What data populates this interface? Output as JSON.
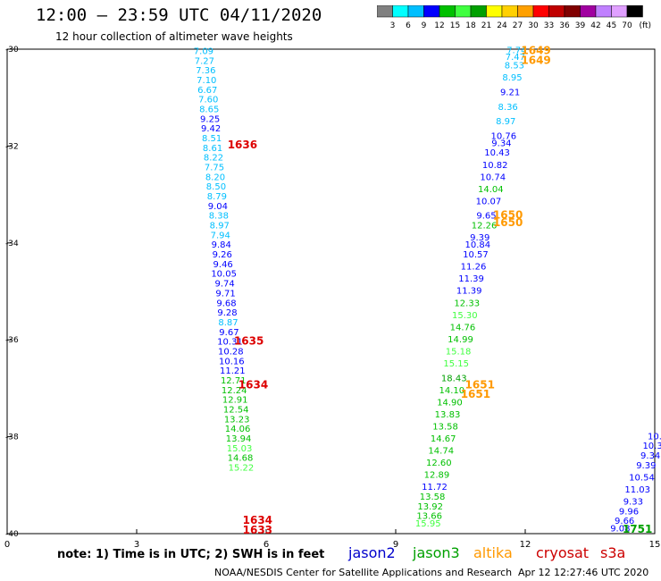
{
  "header": {
    "title": "12:00 – 23:59 UTC 04/11/2020",
    "subtitle": "12 hour collection of altimeter wave heights"
  },
  "legend": {
    "unit": "(ft)",
    "ticks": [
      "3",
      "6",
      "9",
      "12",
      "15",
      "18",
      "21",
      "24",
      "27",
      "30",
      "33",
      "36",
      "39",
      "42",
      "45",
      "70"
    ],
    "colors": [
      "#808080",
      "#00ffff",
      "#00bfff",
      "#0000ff",
      "#00c000",
      "#40ff40",
      "#00a000",
      "#ffff00",
      "#ffd000",
      "#ffa000",
      "#ff0000",
      "#c00000",
      "#800000",
      "#a000a0",
      "#c080ff",
      "#e0a0ff",
      "#000000"
    ]
  },
  "note": "note: 1) Time is in UTC; 2) SWH is in feet",
  "satellites": [
    {
      "name": "jason2",
      "color": "#0000cc"
    },
    {
      "name": "jason3",
      "color": "#00a000"
    },
    {
      "name": "altika",
      "color": "#ff9900"
    },
    {
      "name": "cryosat",
      "color": "#cc0000"
    },
    {
      "name": "s3a",
      "color": "#cc0000"
    }
  ],
  "footer": {
    "credit": "NOAA/NESDIS Center for Satellite Applications and Research",
    "timestamp": "Apr 12 12:27:46 UTC 2020"
  },
  "chart_data": {
    "type": "scatter",
    "xlim": [
      0,
      15
    ],
    "ylim": [
      -40,
      -30
    ],
    "xticks": [
      "0",
      "3",
      "6",
      "9",
      "12",
      "15"
    ],
    "yticks": [
      "-30",
      "-32",
      "-34",
      "-36",
      "-38",
      "-40"
    ],
    "grid": false,
    "legend_position": "top-right",
    "series": [
      {
        "name": "jason2",
        "color_scale": true,
        "points": [
          {
            "x": 4.55,
            "y": -30.1,
            "v": "7.09"
          },
          {
            "x": 4.57,
            "y": -30.3,
            "v": "7.27"
          },
          {
            "x": 4.6,
            "y": -30.5,
            "v": "7.36"
          },
          {
            "x": 4.62,
            "y": -30.7,
            "v": "7.10"
          },
          {
            "x": 4.64,
            "y": -30.9,
            "v": "6.67"
          },
          {
            "x": 4.66,
            "y": -31.1,
            "v": "7.60"
          },
          {
            "x": 4.68,
            "y": -31.3,
            "v": "8.65"
          },
          {
            "x": 4.7,
            "y": -31.5,
            "v": "9.25"
          },
          {
            "x": 4.72,
            "y": -31.7,
            "v": "9.42"
          },
          {
            "x": 4.74,
            "y": -31.9,
            "v": "8.51"
          },
          {
            "x": 4.76,
            "y": -32.1,
            "v": "8.61"
          },
          {
            "x": 4.78,
            "y": -32.3,
            "v": "8.22"
          },
          {
            "x": 4.8,
            "y": -32.5,
            "v": "7.75"
          },
          {
            "x": 4.82,
            "y": -32.7,
            "v": "8.20"
          },
          {
            "x": 4.84,
            "y": -32.9,
            "v": "8.50"
          },
          {
            "x": 4.86,
            "y": -33.1,
            "v": "8.79"
          },
          {
            "x": 4.88,
            "y": -33.3,
            "v": "9.04"
          },
          {
            "x": 4.9,
            "y": -33.5,
            "v": "8.38"
          },
          {
            "x": 4.92,
            "y": -33.7,
            "v": "8.97"
          },
          {
            "x": 4.94,
            "y": -33.9,
            "v": "7.94"
          },
          {
            "x": 4.96,
            "y": -34.1,
            "v": "9.84"
          },
          {
            "x": 4.98,
            "y": -34.3,
            "v": "9.26"
          },
          {
            "x": 5.0,
            "y": -34.5,
            "v": "9.46"
          },
          {
            "x": 5.02,
            "y": -34.7,
            "v": "10.05"
          },
          {
            "x": 5.04,
            "y": -34.9,
            "v": "9.74"
          },
          {
            "x": 5.06,
            "y": -35.1,
            "v": "9.71"
          },
          {
            "x": 5.08,
            "y": -35.3,
            "v": "9.68"
          },
          {
            "x": 5.1,
            "y": -35.5,
            "v": "9.28"
          },
          {
            "x": 5.12,
            "y": -35.7,
            "v": "8.87"
          },
          {
            "x": 5.14,
            "y": -35.9,
            "v": "9.67"
          },
          {
            "x": 5.16,
            "y": -36.1,
            "v": "10.31"
          },
          {
            "x": 5.18,
            "y": -36.3,
            "v": "10.28"
          },
          {
            "x": 5.2,
            "y": -36.5,
            "v": "10.16"
          },
          {
            "x": 5.22,
            "y": -36.7,
            "v": "11.21"
          },
          {
            "x": 5.24,
            "y": -36.9,
            "v": "12.71"
          },
          {
            "x": 5.26,
            "y": -37.1,
            "v": "12.24"
          },
          {
            "x": 5.28,
            "y": -37.3,
            "v": "12.91"
          },
          {
            "x": 5.3,
            "y": -37.5,
            "v": "12.54"
          },
          {
            "x": 5.32,
            "y": -37.7,
            "v": "13.23"
          },
          {
            "x": 5.34,
            "y": -37.9,
            "v": "14.06"
          },
          {
            "x": 5.36,
            "y": -38.1,
            "v": "13.94"
          },
          {
            "x": 5.38,
            "y": -38.3,
            "v": "15.03"
          },
          {
            "x": 5.4,
            "y": -38.5,
            "v": "14.68"
          },
          {
            "x": 5.42,
            "y": -38.7,
            "v": "15.22"
          }
        ]
      },
      {
        "name": "jason3",
        "color_scale": true,
        "points": [
          {
            "x": 11.8,
            "y": -30.08,
            "v": "7.74"
          },
          {
            "x": 11.77,
            "y": -30.22,
            "v": "7.47"
          },
          {
            "x": 11.75,
            "y": -30.4,
            "v": "8.53"
          },
          {
            "x": 11.7,
            "y": -30.65,
            "v": "8.95"
          },
          {
            "x": 11.65,
            "y": -30.95,
            "v": "9.21"
          },
          {
            "x": 11.6,
            "y": -31.25,
            "v": "8.36"
          },
          {
            "x": 11.55,
            "y": -31.55,
            "v": "8.97"
          },
          {
            "x": 11.5,
            "y": -31.85,
            "v": "10.76"
          },
          {
            "x": 11.45,
            "y": -32.0,
            "v": "9.34"
          },
          {
            "x": 11.35,
            "y": -32.2,
            "v": "10.43"
          },
          {
            "x": 11.3,
            "y": -32.45,
            "v": "10.82"
          },
          {
            "x": 11.25,
            "y": -32.7,
            "v": "10.74"
          },
          {
            "x": 11.2,
            "y": -32.95,
            "v": "14.04"
          },
          {
            "x": 11.15,
            "y": -33.2,
            "v": "10.07"
          },
          {
            "x": 11.1,
            "y": -33.5,
            "v": "9.65"
          },
          {
            "x": 11.05,
            "y": -33.7,
            "v": "12.26"
          },
          {
            "x": 10.95,
            "y": -33.95,
            "v": "9.39"
          },
          {
            "x": 10.9,
            "y": -34.1,
            "v": "10.84"
          },
          {
            "x": 10.85,
            "y": -34.3,
            "v": "10.57"
          },
          {
            "x": 10.8,
            "y": -34.55,
            "v": "11.26"
          },
          {
            "x": 10.75,
            "y": -34.8,
            "v": "11.39"
          },
          {
            "x": 10.7,
            "y": -35.05,
            "v": "11.39"
          },
          {
            "x": 10.65,
            "y": -35.3,
            "v": "12.33"
          },
          {
            "x": 10.6,
            "y": -35.55,
            "v": "15.30"
          },
          {
            "x": 10.55,
            "y": -35.8,
            "v": "14.76"
          },
          {
            "x": 10.5,
            "y": -36.05,
            "v": "14.99"
          },
          {
            "x": 10.45,
            "y": -36.3,
            "v": "15.18"
          },
          {
            "x": 10.4,
            "y": -36.55,
            "v": "15.15"
          },
          {
            "x": 10.35,
            "y": -36.85,
            "v": "18.43"
          },
          {
            "x": 10.3,
            "y": -37.1,
            "v": "14.10"
          },
          {
            "x": 10.25,
            "y": -37.35,
            "v": "14.90"
          },
          {
            "x": 10.2,
            "y": -37.6,
            "v": "13.83"
          },
          {
            "x": 10.15,
            "y": -37.85,
            "v": "13.58"
          },
          {
            "x": 10.1,
            "y": -38.1,
            "v": "14.67"
          },
          {
            "x": 10.05,
            "y": -38.35,
            "v": "14.74"
          },
          {
            "x": 10.0,
            "y": -38.6,
            "v": "12.60"
          },
          {
            "x": 9.95,
            "y": -38.85,
            "v": "12.89"
          },
          {
            "x": 9.9,
            "y": -39.1,
            "v": "11.72"
          },
          {
            "x": 9.85,
            "y": -39.3,
            "v": "13.58"
          },
          {
            "x": 9.8,
            "y": -39.5,
            "v": "13.92"
          },
          {
            "x": 9.78,
            "y": -39.7,
            "v": "13.66"
          },
          {
            "x": 9.75,
            "y": -39.85,
            "v": "15.95"
          }
        ]
      },
      {
        "name": "s3a",
        "color_scale": true,
        "points": [
          {
            "x": 15.0,
            "y": -38.05,
            "v": "10."
          },
          {
            "x": 14.95,
            "y": -38.25,
            "v": "10.3"
          },
          {
            "x": 14.9,
            "y": -38.45,
            "v": "9.34"
          },
          {
            "x": 14.8,
            "y": -38.65,
            "v": "9.39"
          },
          {
            "x": 14.7,
            "y": -38.9,
            "v": "10.54"
          },
          {
            "x": 14.6,
            "y": -39.15,
            "v": "11.03"
          },
          {
            "x": 14.5,
            "y": -39.4,
            "v": "9.33"
          },
          {
            "x": 14.4,
            "y": -39.6,
            "v": "9.96"
          },
          {
            "x": 14.3,
            "y": -39.8,
            "v": "9.66"
          },
          {
            "x": 14.2,
            "y": -39.95,
            "v": "9.08"
          }
        ]
      }
    ],
    "time_labels": [
      {
        "x": 5.45,
        "y": -32.05,
        "text": "1636",
        "color": "#dd0000"
      },
      {
        "x": 5.6,
        "y": -36.1,
        "text": "1635",
        "color": "#dd0000"
      },
      {
        "x": 5.7,
        "y": -37.0,
        "text": "1634",
        "color": "#dd0000"
      },
      {
        "x": 5.8,
        "y": -39.8,
        "text": "1634",
        "color": "#dd0000"
      },
      {
        "x": 5.8,
        "y": -40.0,
        "text": "1633",
        "color": "#dd0000"
      },
      {
        "x": 12.25,
        "y": -30.1,
        "text": "1649",
        "color": "#ff9900"
      },
      {
        "x": 12.25,
        "y": -30.3,
        "text": "1649",
        "color": "#ff9900"
      },
      {
        "x": 11.6,
        "y": -33.5,
        "text": "1650",
        "color": "#ff9900"
      },
      {
        "x": 11.6,
        "y": -33.65,
        "text": "1650",
        "color": "#ff9900"
      },
      {
        "x": 10.95,
        "y": -37.0,
        "text": "1651",
        "color": "#ff9900"
      },
      {
        "x": 10.85,
        "y": -37.2,
        "text": "1651",
        "color": "#ff9900"
      },
      {
        "x": 14.6,
        "y": -39.98,
        "text": "1751",
        "color": "#00a000"
      }
    ]
  }
}
